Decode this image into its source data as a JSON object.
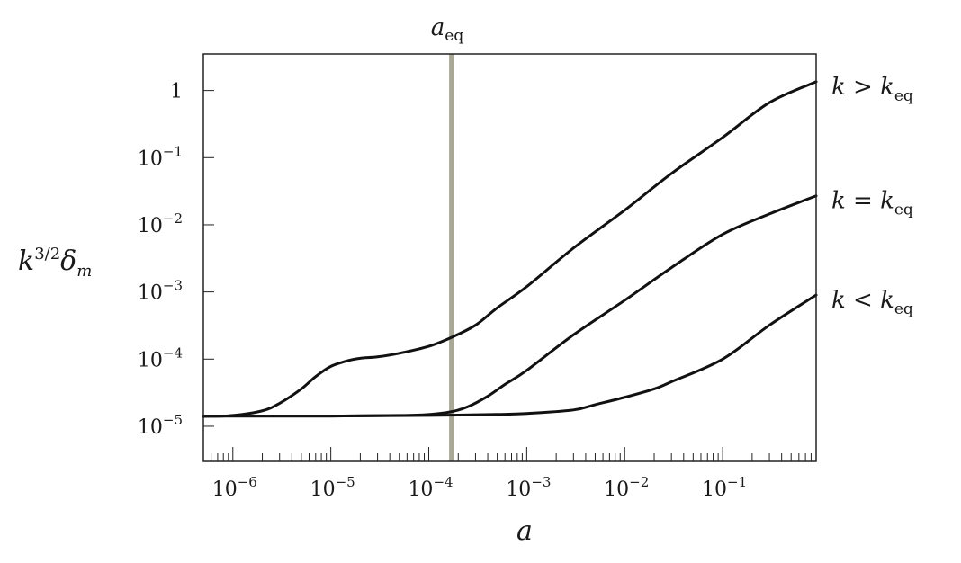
{
  "chart_data": {
    "type": "line",
    "x_scale": "log",
    "y_scale": "log",
    "xlim": [
      5e-07,
      0.9
    ],
    "ylim": [
      3e-06,
      3.5
    ],
    "xlabel": "a",
    "ylabel": "k^{3/2} δ_m",
    "x_ticks": [
      {
        "value": 1e-06,
        "base": "10",
        "exp": "−6"
      },
      {
        "value": 1e-05,
        "base": "10",
        "exp": "−5"
      },
      {
        "value": 0.0001,
        "base": "10",
        "exp": "−4"
      },
      {
        "value": 0.001,
        "base": "10",
        "exp": "−3"
      },
      {
        "value": 0.01,
        "base": "10",
        "exp": "−2"
      },
      {
        "value": 0.1,
        "base": "10",
        "exp": "−1"
      }
    ],
    "y_ticks": [
      {
        "value": 1e-05,
        "base": "10",
        "exp": "−5"
      },
      {
        "value": 0.0001,
        "base": "10",
        "exp": "−4"
      },
      {
        "value": 0.001,
        "base": "10",
        "exp": "−3"
      },
      {
        "value": 0.01,
        "base": "10",
        "exp": "−2"
      },
      {
        "value": 0.1,
        "base": "10",
        "exp": "−1"
      },
      {
        "value": 1,
        "base": "1",
        "exp": ""
      }
    ],
    "vertical_marker": {
      "x": 0.00017,
      "label_main": "a",
      "label_sub": "eq",
      "color": "#a9a796"
    },
    "line_color": "#111111",
    "series": [
      {
        "name": "k > k_eq",
        "label_lhs": "k",
        "label_op": ">",
        "label_rhs": "k",
        "label_sub": "eq",
        "points": [
          [
            5e-07,
            1.4e-05
          ],
          [
            1e-06,
            1.45e-05
          ],
          [
            2e-06,
            1.7e-05
          ],
          [
            3e-06,
            2.2e-05
          ],
          [
            5e-06,
            3.6e-05
          ],
          [
            7e-06,
            5.5e-05
          ],
          [
            1e-05,
            7.8e-05
          ],
          [
            1.5e-05,
            9.5e-05
          ],
          [
            2e-05,
            0.000103
          ],
          [
            3e-05,
            0.000108
          ],
          [
            5e-05,
            0.000122
          ],
          [
            0.0001,
            0.000155
          ],
          [
            0.00017,
            0.00021
          ],
          [
            0.0003,
            0.00032
          ],
          [
            0.0005,
            0.00058
          ],
          [
            0.001,
            0.0012
          ],
          [
            0.003,
            0.0045
          ],
          [
            0.01,
            0.0165
          ],
          [
            0.03,
            0.058
          ],
          [
            0.1,
            0.2
          ],
          [
            0.3,
            0.66
          ],
          [
            0.9,
            1.35
          ]
        ]
      },
      {
        "name": "k = k_eq",
        "label_lhs": "k",
        "label_op": "=",
        "label_rhs": "k",
        "label_sub": "eq",
        "points": [
          [
            5e-07,
            1.42e-05
          ],
          [
            1e-05,
            1.42e-05
          ],
          [
            5e-05,
            1.45e-05
          ],
          [
            0.0001,
            1.5e-05
          ],
          [
            0.00017,
            1.65e-05
          ],
          [
            0.00025,
            1.95e-05
          ],
          [
            0.0004,
            2.8e-05
          ],
          [
            0.0006,
            4.2e-05
          ],
          [
            0.001,
            6.8e-05
          ],
          [
            0.003,
            0.00023
          ],
          [
            0.01,
            0.00075
          ],
          [
            0.03,
            0.0023
          ],
          [
            0.1,
            0.0072
          ],
          [
            0.3,
            0.0145
          ],
          [
            0.9,
            0.027
          ]
        ]
      },
      {
        "name": "k < k_eq",
        "label_lhs": "k",
        "label_op": "<",
        "label_rhs": "k",
        "label_sub": "eq",
        "points": [
          [
            5e-07,
            1.42e-05
          ],
          [
            1e-05,
            1.42e-05
          ],
          [
            0.0001,
            1.45e-05
          ],
          [
            0.0005,
            1.5e-05
          ],
          [
            0.001,
            1.55e-05
          ],
          [
            0.003,
            1.75e-05
          ],
          [
            0.005,
            2.1e-05
          ],
          [
            0.01,
            2.7e-05
          ],
          [
            0.02,
            3.6e-05
          ],
          [
            0.03,
            4.6e-05
          ],
          [
            0.1,
            0.0001
          ],
          [
            0.3,
            0.00032
          ],
          [
            0.9,
            0.0009
          ]
        ]
      }
    ]
  }
}
